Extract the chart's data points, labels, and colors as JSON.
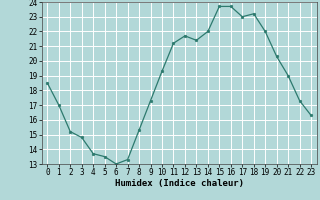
{
  "x": [
    0,
    1,
    2,
    3,
    4,
    5,
    6,
    7,
    8,
    9,
    10,
    11,
    12,
    13,
    14,
    15,
    16,
    17,
    18,
    19,
    20,
    21,
    22,
    23
  ],
  "y": [
    18.5,
    17.0,
    15.2,
    14.8,
    13.7,
    13.5,
    13.0,
    13.3,
    15.3,
    17.3,
    19.3,
    21.2,
    21.7,
    21.4,
    22.0,
    23.7,
    23.7,
    23.0,
    23.2,
    22.0,
    20.3,
    19.0,
    17.3,
    16.3
  ],
  "ylim": [
    13,
    24
  ],
  "yticks": [
    13,
    14,
    15,
    16,
    17,
    18,
    19,
    20,
    21,
    22,
    23,
    24
  ],
  "xticks": [
    0,
    1,
    2,
    3,
    4,
    5,
    6,
    7,
    8,
    9,
    10,
    11,
    12,
    13,
    14,
    15,
    16,
    17,
    18,
    19,
    20,
    21,
    22,
    23
  ],
  "xlabel": "Humidex (Indice chaleur)",
  "line_color": "#2d7a6e",
  "marker": "o",
  "marker_size": 1.8,
  "background_color": "#b2d8d8",
  "grid_color": "#ffffff",
  "tick_fontsize": 5.5,
  "xlabel_fontsize": 6.5,
  "linewidth": 0.9
}
